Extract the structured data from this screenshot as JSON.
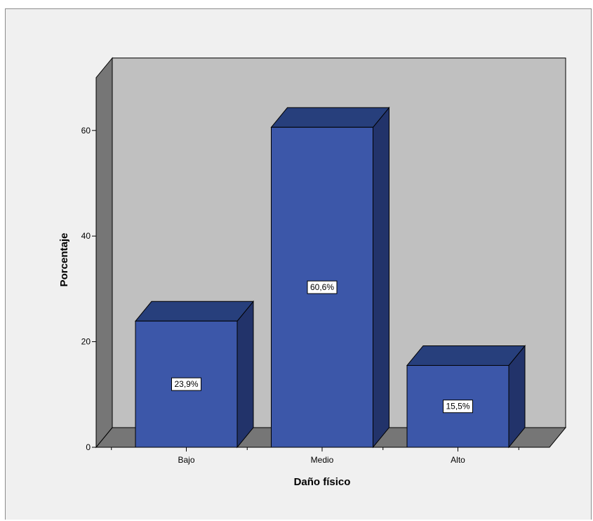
{
  "chart_data": {
    "type": "bar",
    "style": "3d",
    "categories": [
      "Bajo",
      "Medio",
      "Alto"
    ],
    "values": [
      23.9,
      60.6,
      15.5
    ],
    "data_labels": [
      "23,9%",
      "60,6%",
      "15,5%"
    ],
    "xlabel": "Daño físico",
    "ylabel": "Porcentaje",
    "ylim": [
      0,
      70
    ],
    "yticks": [
      0,
      20,
      40,
      60
    ],
    "grid": false,
    "legend": "none",
    "colors": {
      "bar_front": "#3c57a9",
      "bar_top": "#273f7c",
      "bar_side": "#22336a",
      "back_wall": "#c0c0c0",
      "side_wall": "#767676",
      "floor": "#767676",
      "background": "#f0f0f0"
    }
  }
}
